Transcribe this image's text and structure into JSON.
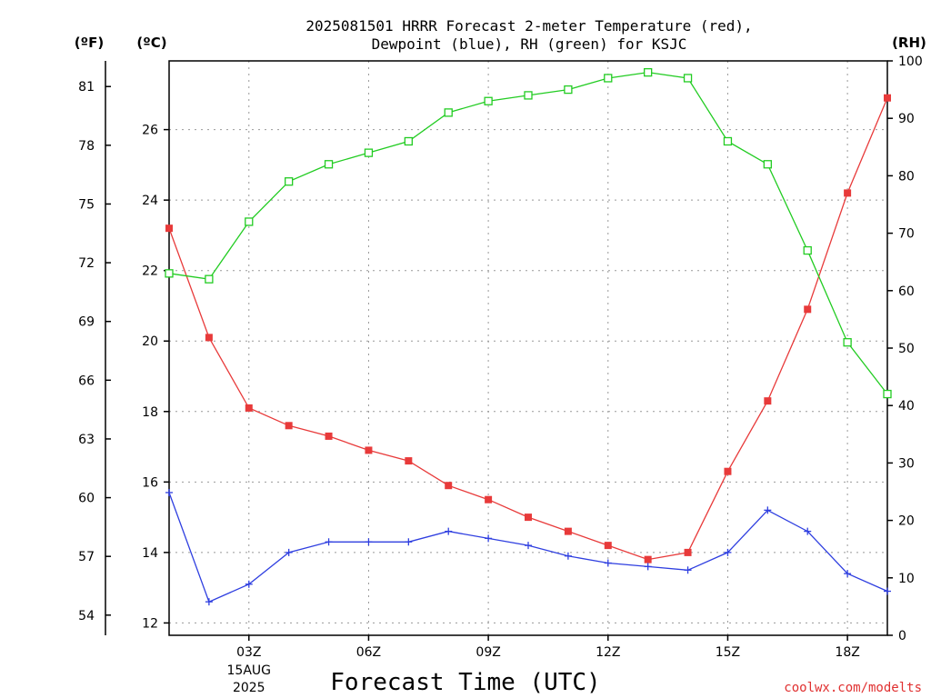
{
  "chart_data": {
    "type": "line",
    "title": [
      "2025081501 HRRR Forecast 2-meter Temperature (red),",
      "Dewpoint (blue), RH (green) for KSJC"
    ],
    "xlabel": "Forecast Time (UTC)",
    "credit": "coolwx.com/modelts",
    "unit_labels": {
      "f": "(ºF)",
      "c": "(ºC)",
      "rh": "(RH)"
    },
    "x": [
      1,
      2,
      3,
      4,
      5,
      6,
      7,
      8,
      9,
      10,
      11,
      12,
      13,
      14,
      15,
      16,
      17,
      18,
      19
    ],
    "xlim": [
      1,
      19
    ],
    "x_ticks": [
      {
        "x": 3,
        "label": "03Z",
        "sub": [
          "15AUG",
          "2025"
        ]
      },
      {
        "x": 6,
        "label": "06Z"
      },
      {
        "x": 9,
        "label": "09Z"
      },
      {
        "x": 12,
        "label": "12Z"
      },
      {
        "x": 15,
        "label": "15Z"
      },
      {
        "x": 18,
        "label": "18Z"
      }
    ],
    "x_grid": [
      3,
      6,
      9,
      12,
      15,
      18
    ],
    "yc_lim": [
      11.65,
      27.95
    ],
    "yc_ticks": [
      12,
      14,
      16,
      18,
      20,
      22,
      24,
      26
    ],
    "yf_ticks": [
      54,
      57,
      60,
      63,
      66,
      69,
      72,
      75,
      78,
      81
    ],
    "rh_lim": [
      0,
      100
    ],
    "rh_ticks": [
      0,
      10,
      20,
      30,
      40,
      50,
      60,
      70,
      80,
      90,
      100
    ],
    "grid": true,
    "series": [
      {
        "name": "Temperature",
        "axis": "c",
        "color": "#e83a3a",
        "marker": "filled-square",
        "values": [
          23.2,
          20.1,
          18.1,
          17.6,
          17.3,
          16.9,
          16.6,
          15.9,
          15.5,
          15.0,
          14.6,
          14.2,
          13.8,
          14.0,
          16.3,
          18.3,
          20.9,
          24.2,
          26.9
        ]
      },
      {
        "name": "Dewpoint",
        "axis": "c",
        "color": "#2f3fe0",
        "marker": "plus",
        "values": [
          15.7,
          12.6,
          13.1,
          14.0,
          14.3,
          14.3,
          14.3,
          14.6,
          14.4,
          14.2,
          13.9,
          13.7,
          13.6,
          13.5,
          14.0,
          15.2,
          14.6,
          13.4,
          12.9
        ]
      },
      {
        "name": "RH",
        "axis": "rh",
        "color": "#22cc22",
        "marker": "open-square",
        "values": [
          63,
          62,
          72,
          79,
          82,
          84,
          86,
          91,
          93,
          94,
          95,
          97,
          98,
          97,
          86,
          82,
          67,
          51,
          42
        ]
      }
    ]
  }
}
